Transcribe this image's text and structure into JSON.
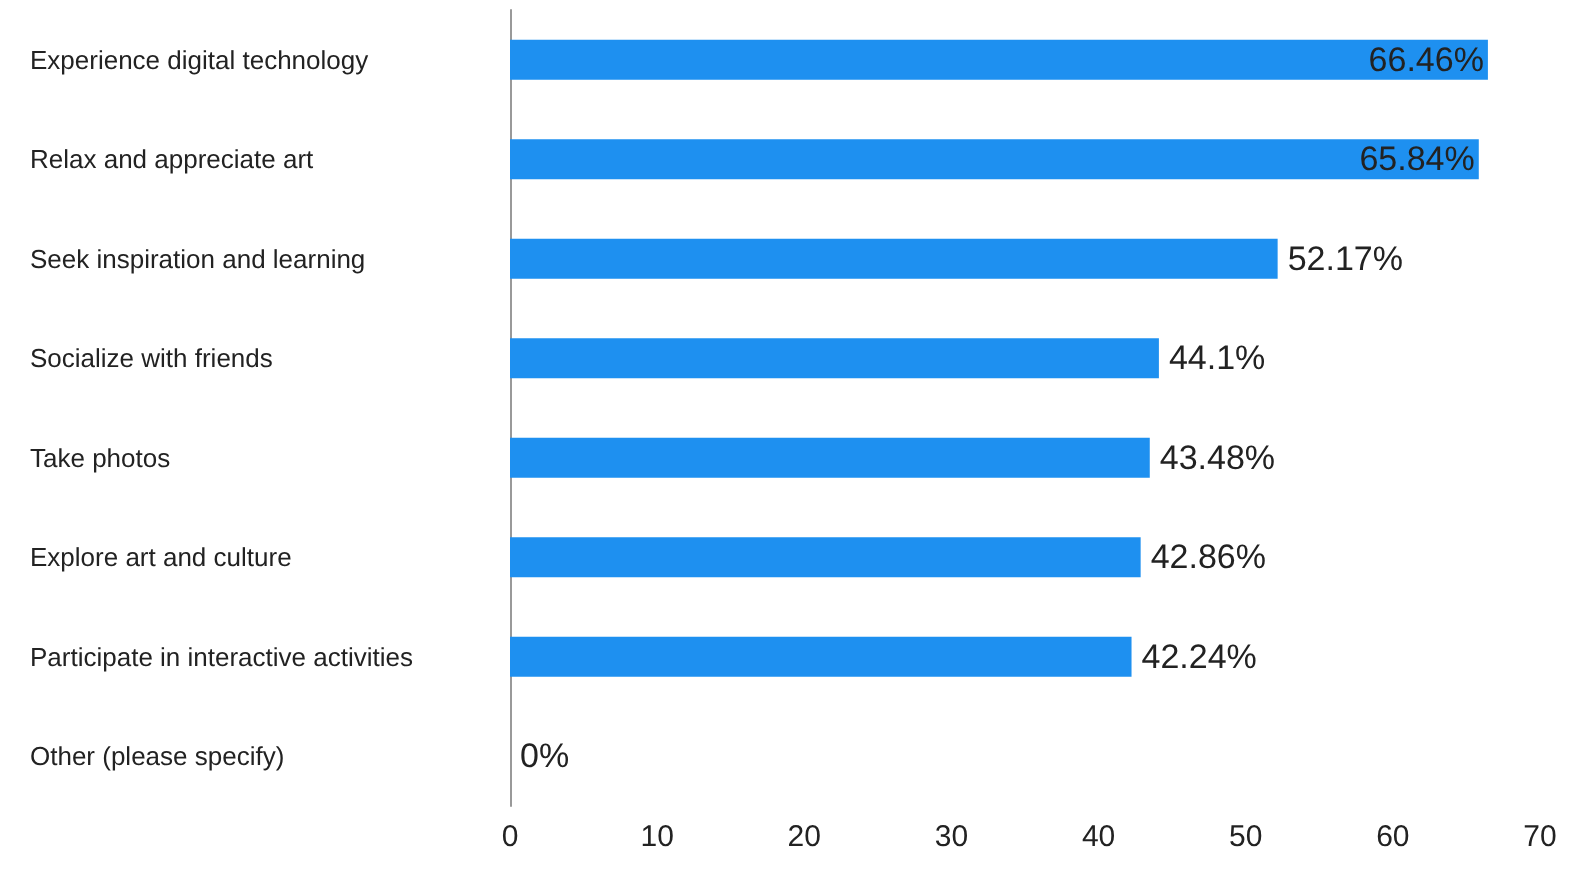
{
  "chart_data": {
    "type": "bar",
    "orientation": "horizontal",
    "categories": [
      "Experience digital technology",
      "Relax and appreciate art",
      "Seek inspiration and learning",
      "Socialize with friends",
      "Take photos",
      "Explore art and culture",
      "Participate in interactive activities",
      "Other (please specify)"
    ],
    "values": [
      66.46,
      65.84,
      52.17,
      44.1,
      43.48,
      42.86,
      42.24,
      0
    ],
    "value_labels": [
      "66.46%",
      "65.84%",
      "52.17%",
      "44.1%",
      "43.48%",
      "42.86%",
      "42.24%",
      "0%"
    ],
    "color": "#1e90f0",
    "xlim": [
      0,
      70
    ],
    "xticks": [
      0,
      10,
      20,
      30,
      40,
      50,
      60,
      70
    ]
  }
}
